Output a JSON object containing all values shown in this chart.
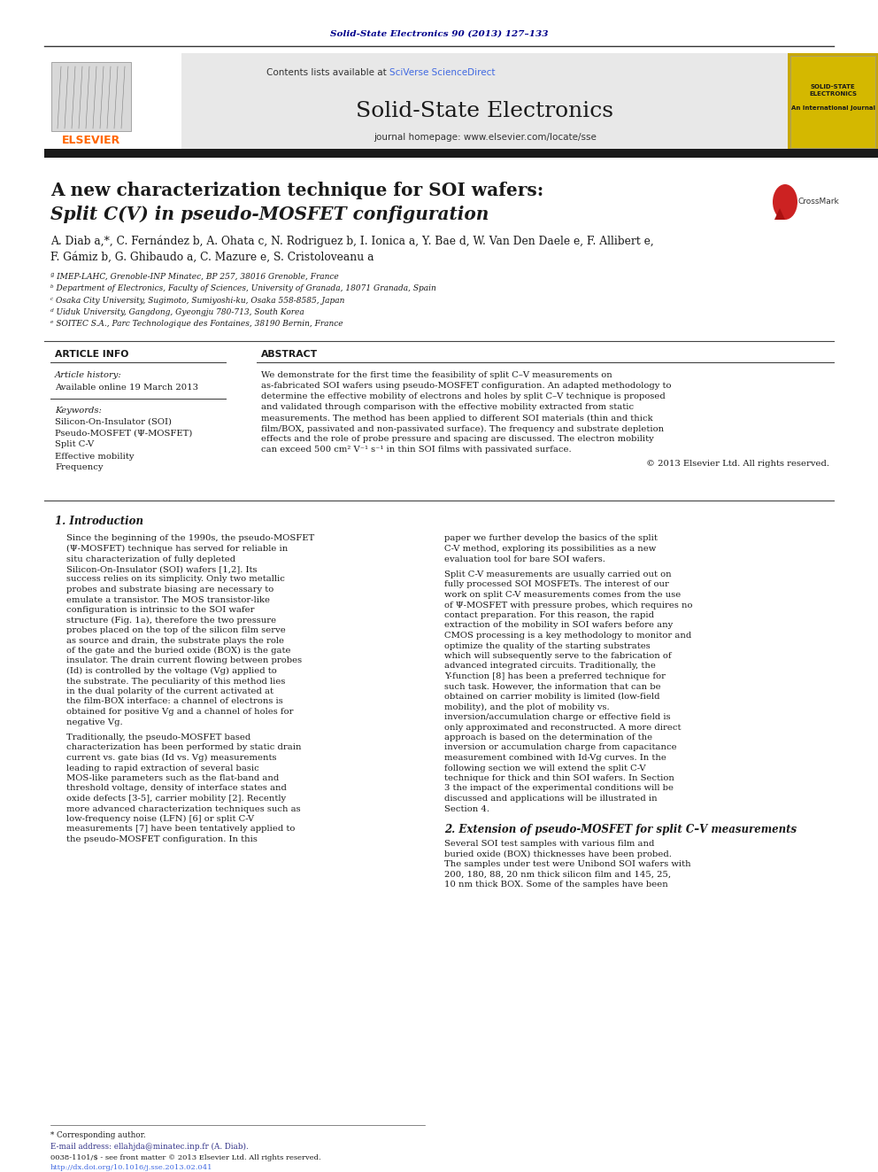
{
  "page_width": 9.92,
  "page_height": 13.23,
  "background_color": "#ffffff",
  "header_journal_ref": "Solid-State Electronics 90 (2013) 127–133",
  "header_ref_color": "#00008B",
  "journal_banner_bg": "#e8e8e8",
  "journal_name": "Solid-State Electronics",
  "contents_text": "Contents lists available at ",
  "sciverse_text": "SciVerse ScienceDirect",
  "homepage_text": "journal homepage: www.elsevier.com/locate/sse",
  "elsevier_color": "#FF6600",
  "sciverse_color": "#4169E1",
  "thick_bar_color": "#1a1a1a",
  "article_title_line1": "A new characterization technique for SOI wafers:",
  "article_title_line2": "Split C(V) in pseudo-MOSFET configuration",
  "authors": "A. Diab a,*, C. Fernández b, A. Ohata c, N. Rodriguez b, I. Ionica a, Y. Bae d, W. Van Den Daele e, F. Allibert e,",
  "authors2": "F. Gámiz b, G. Ghibaudo a, C. Mazure e, S. Cristoloveanu a",
  "affil_a": "ª IMEP-LAHC, Grenoble-INP Minatec, BP 257, 38016 Grenoble, France",
  "affil_b": "ᵇ Department of Electronics, Faculty of Sciences, University of Granada, 18071 Granada, Spain",
  "affil_c": "ᶜ Osaka City University, Sugimoto, Sumiyoshi-ku, Osaka 558-8585, Japan",
  "affil_d": "ᵈ Uiduk University, Gangdong, Gyeongju 780-713, South Korea",
  "affil_e": "ᵉ SOITEC S.A., Parc Technologique des Fontaines, 38190 Bernin, France",
  "article_info_title": "ARTICLE INFO",
  "abstract_title": "ABSTRACT",
  "article_history_label": "Article history:",
  "available_online": "Available online 19 March 2013",
  "keywords_label": "Keywords:",
  "keyword1": "Silicon-On-Insulator (SOI)",
  "keyword2": "Pseudo-MOSFET (Ψ-MOSFET)",
  "keyword3": "Split C-V",
  "keyword4": "Effective mobility",
  "keyword5": "Frequency",
  "abstract_text": "We demonstrate for the first time the feasibility of split C–V measurements on as-fabricated SOI wafers using pseudo-MOSFET configuration. An adapted methodology to determine the effective mobility of electrons and holes by split C–V technique is proposed and validated through comparison with the effective mobility extracted from static measurements. The method has been applied to different SOI materials (thin and thick film/BOX, passivated and non-passivated surface). The frequency and substrate depletion effects and the role of probe pressure and spacing are discussed. The electron mobility can exceed 500 cm² V⁻¹ s⁻¹ in thin SOI films with passivated surface.",
  "copyright_text": "© 2013 Elsevier Ltd. All rights reserved.",
  "section1_title": "1. Introduction",
  "section1_col1": "Since the beginning of the 1990s, the pseudo-MOSFET (Ψ-MOSFET) technique has served for reliable in situ characterization of fully depleted Silicon-On-Insulator (SOI) wafers [1,2]. Its success relies on its simplicity. Only two metallic probes and substrate biasing are necessary to emulate a transistor. The MOS transistor-like configuration is intrinsic to the SOI wafer structure (Fig. 1a), therefore the two pressure probes placed on the top of the silicon film serve as source and drain, the substrate plays the role of the gate and the buried oxide (BOX) is the gate insulator. The drain current flowing between probes (Id) is controlled by the voltage (Vg) applied to the substrate. The peculiarity of this method lies in the dual polarity of the current activated at the film-BOX interface: a channel of electrons is obtained for positive Vg and a channel of holes for negative Vg.",
  "section1_col1b": "    Traditionally, the pseudo-MOSFET based characterization has been performed by static drain current vs. gate bias (Id vs. Vg) measurements leading to rapid extraction of several basic MOS-like parameters such as the flat-band and threshold voltage, density of interface states and oxide defects [3-5], carrier mobility [2]. Recently more advanced characterization techniques such as low-frequency noise (LFN) [6] or split C-V measurements [7] have been tentatively applied to the pseudo-MOSFET configuration. In this",
  "section1_col2a": "paper we further develop the basics of the split C-V method, exploring its possibilities as a new evaluation tool for bare SOI wafers.",
  "section1_col2b": "    Split C-V measurements are usually carried out on fully processed SOI MOSFETs. The interest of our work on split C-V measurements comes from the use of Ψ-MOSFET with pressure probes, which requires no contact preparation. For this reason, the rapid extraction of the mobility in SOI wafers before any CMOS processing is a key methodology to monitor and optimize the quality of the starting substrates which will subsequently serve to the fabrication of advanced integrated circuits. Traditionally, the Y-function [8] has been a preferred technique for such task. However, the information that can be obtained on carrier mobility is limited (low-field mobility), and the plot of mobility vs. inversion/accumulation charge or effective field is only approximated and reconstructed. A more direct approach is based on the determination of the inversion or accumulation charge from capacitance measurement combined with Id-Vg curves. In the following section we will extend the split C-V technique for thick and thin SOI wafers. In Section 3 the impact of the experimental conditions will be discussed and applications will be illustrated in Section 4.",
  "section2_title": "2. Extension of pseudo-MOSFET for split C–V measurements",
  "section2_text": "    Several SOI test samples with various film and buried oxide (BOX) thicknesses have been probed. The samples under test were Unibond SOI wafers with 200, 180, 88, 20 nm thick silicon film and 145, 25, 10 nm thick BOX. Some of the samples have been",
  "footer_corresponding": "* Corresponding author.",
  "footer_email": "E-mail address: ellahjda@minatec.inp.fr (A. Diab).",
  "footer_copyright": "0038-1101/$ - see front matter © 2013 Elsevier Ltd. All rights reserved.",
  "footer_doi": "http://dx.doi.org/10.1016/j.sse.2013.02.041"
}
